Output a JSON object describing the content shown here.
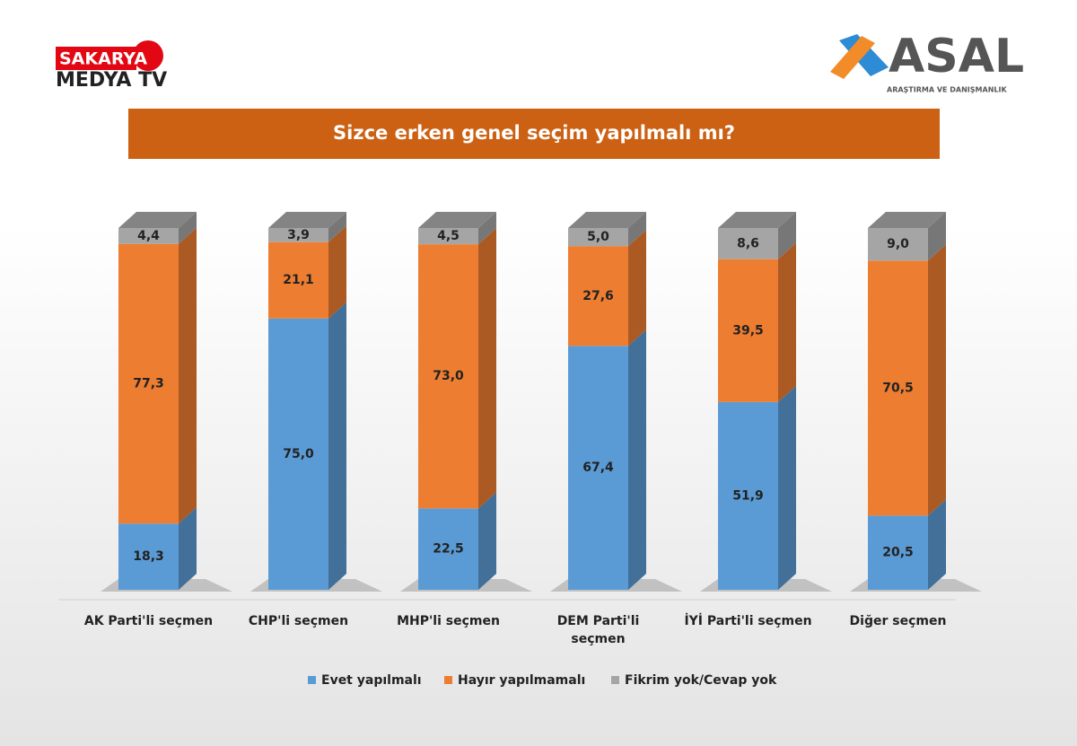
{
  "logo_left": {
    "top": "SAKARYA",
    "bottom": "MEDYA TV"
  },
  "logo_right": {
    "name": "ASAL",
    "tagline": "ARAŞTIRMA VE DANIŞMANLIK"
  },
  "chart_data": {
    "type": "stacked_bar_3d",
    "title": "Sizce erken genel seçim yapılmalı mı?",
    "categories": [
      "AK Parti'li seçmen",
      "CHP'li seçmen",
      "MHP'li seçmen",
      "DEM Parti'li seçmen",
      "İYİ Parti'li seçmen",
      "Diğer seçmen"
    ],
    "ylim": [
      0,
      100
    ],
    "series": [
      {
        "name": "Evet yapılmalı",
        "color": "#5b9bd5",
        "values": [
          18.3,
          75.0,
          22.5,
          67.4,
          51.9,
          20.5
        ],
        "value_labels": [
          "18,3",
          "75,0",
          "22,5",
          "67,4",
          "51,9",
          "20,5"
        ]
      },
      {
        "name": "Hayır yapılmamalı",
        "color": "#ed7d31",
        "values": [
          77.3,
          21.1,
          73.0,
          27.6,
          39.5,
          70.5
        ],
        "value_labels": [
          "77,3",
          "21,1",
          "73,0",
          "27,6",
          "39,5",
          "70,5"
        ]
      },
      {
        "name": "Fikrim yok/Cevap yok",
        "color": "#a5a5a5",
        "values": [
          4.4,
          3.9,
          4.5,
          5.0,
          8.6,
          9.0
        ],
        "value_labels": [
          "4,4",
          "3,9",
          "4,5",
          "5,0",
          "8,6",
          "9,0"
        ]
      }
    ],
    "legend": "bottom"
  }
}
